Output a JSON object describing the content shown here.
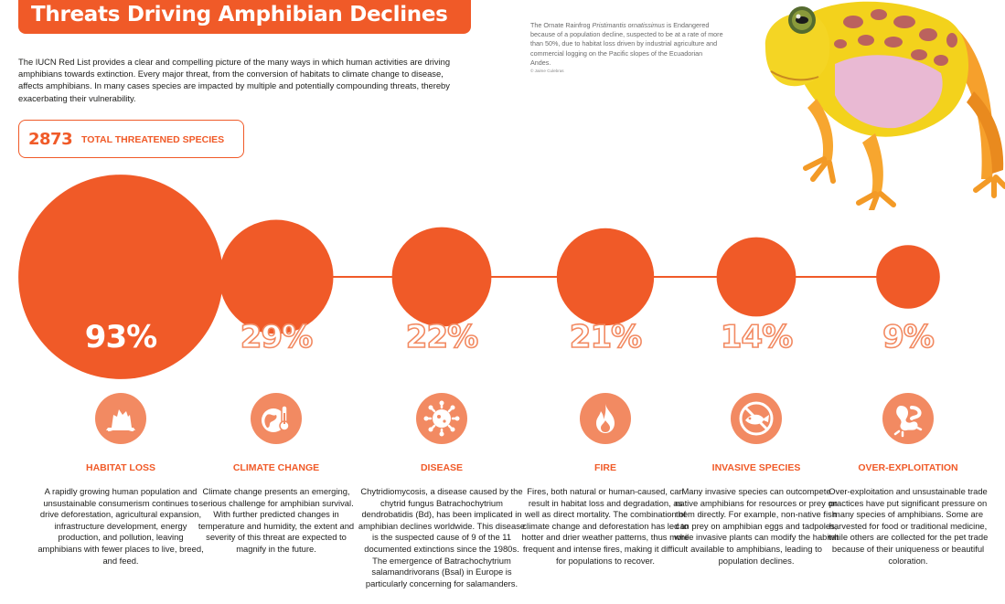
{
  "header": {
    "title": "Threats Driving Amphibian Declines",
    "intro": "The IUCN Red List provides a clear and compelling picture of the many ways in which human activities are driving amphibians towards extinction. Every major threat, from the conversion of habitats to climate change to disease, affects amphibians. In many cases species are impacted by multiple and potentially compounding threats, thereby exacerbating their vulnerability."
  },
  "total": {
    "number": "2873",
    "label": "TOTAL THREATENED SPECIES"
  },
  "photo": {
    "caption_pre": "The Ornate Rainfrog ",
    "caption_species": "Pristimantis ornatissimus",
    "caption_post": " is Endangered because of a population decline, suspected to be at a rate of more than 50%, due to habitat loss driven by industrial agriculture and commercial logging on the Pacific slopes of the Ecuadorian Andes.",
    "credit": "© Jaime Culebras"
  },
  "colors": {
    "accent": "#f05a28",
    "accent_light": "#f28a62",
    "text": "#1d1d1b"
  },
  "chart_data": {
    "type": "bubble",
    "title": "",
    "unit": "%",
    "categories": [
      "HABITAT LOSS",
      "CLIMATE CHANGE",
      "DISEASE",
      "FIRE",
      "INVASIVE SPECIES",
      "OVER-EXPLOITATION"
    ],
    "values": [
      93,
      29,
      22,
      21,
      14,
      9
    ],
    "labels": [
      "93%",
      "29%",
      "22%",
      "21%",
      "14%",
      "9%"
    ]
  },
  "categories": [
    {
      "name": "HABITAT LOSS",
      "icon": "tree-stump-icon",
      "desc": "A rapidly growing human population and unsustainable consumerism continues to drive deforestation, agricultural expansion, infrastructure development, energy production, and pollution, leaving amphibians with fewer places to live, breed, and feed."
    },
    {
      "name": "CLIMATE CHANGE",
      "icon": "globe-thermometer-icon",
      "desc": "Climate change presents an emerging, serious challenge for amphibian survival. With further predicted changes in temperature and humidity, the extent and severity of this threat are expected to magnify in the future."
    },
    {
      "name": "DISEASE",
      "icon": "virus-icon",
      "desc": "Chytridiomycosis, a disease caused by the chytrid fungus Batrachochytrium dendrobatidis (Bd), has been implicated in amphibian declines worldwide. This disease is the suspected cause of 9 of the 11 documented extinctions since the 1980s. The emergence of Batrachochytrium salamandrivorans (Bsal) in Europe is particularly concerning for salamanders."
    },
    {
      "name": "FIRE",
      "icon": "flame-icon",
      "desc": "Fires, both natural or human-caused, can result in habitat loss and degradation, as well as direct mortality. The combination of climate change and deforestation has led to hotter and drier weather patterns, thus more frequent and intense fires, making it difficult for populations to recover."
    },
    {
      "name": "INVASIVE SPECIES",
      "icon": "no-fish-icon",
      "desc": "Many invasive species can outcompete native amphibians for resources or prey on them directly. For example, non-native fish can prey on amphibian eggs and tadpoles, while invasive plants can modify the habitat available to amphibians, leading to population declines."
    },
    {
      "name": "OVER-EXPLOITATION",
      "icon": "frog-legs-icon",
      "desc": "Over-exploitation and unsustainable trade practices have put significant pressure on many species of amphibians. Some are harvested for food or traditional medicine, while others are collected for the pet trade because of their uniqueness or beautiful coloration."
    }
  ]
}
